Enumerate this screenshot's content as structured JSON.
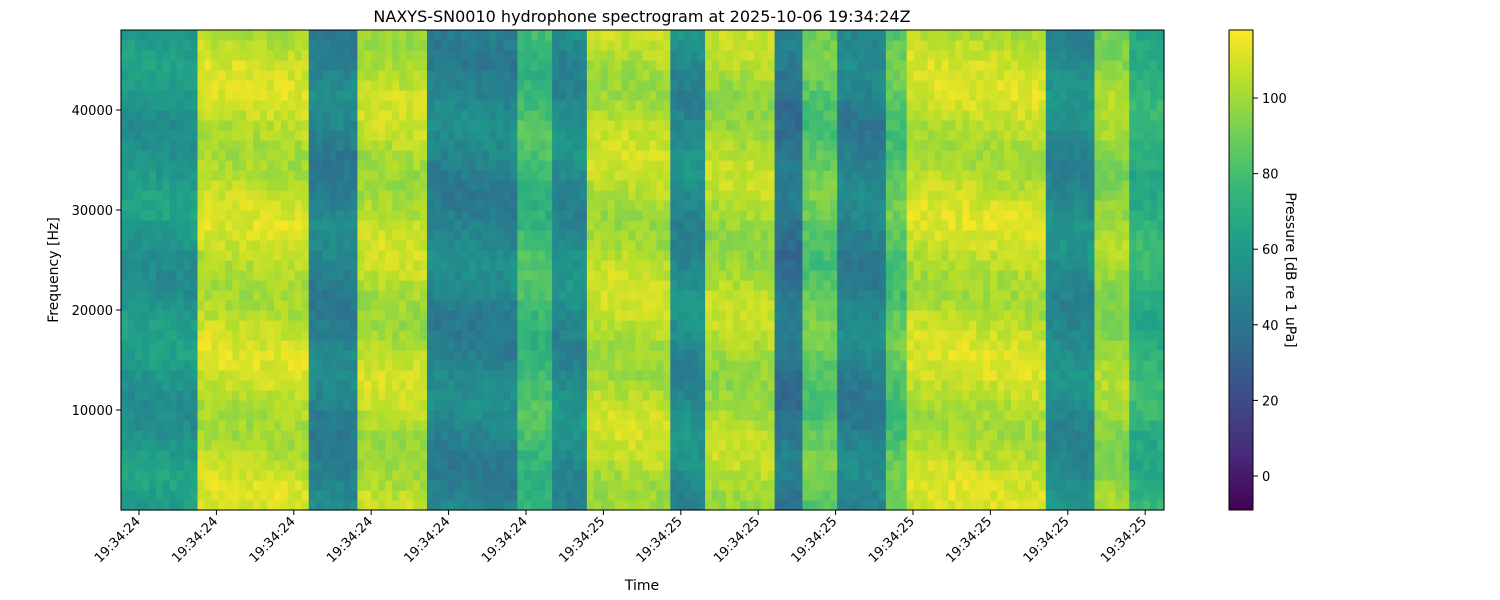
{
  "chart_data": {
    "type": "heatmap",
    "title": "NAXYS-SN0010 hydrophone spectrogram at 2025-10-06 19:34:24Z",
    "xlabel": "Time",
    "ylabel": "Frequency [Hz]",
    "colorbar_label": "Pressure [dB re 1 uPa]",
    "colormap": "viridis",
    "colormap_stops": [
      "#440154",
      "#482878",
      "#3e4a89",
      "#31688e",
      "#26828e",
      "#1f9e89",
      "#35b779",
      "#6ece58",
      "#b5de2b",
      "#fde725"
    ],
    "x_tick_labels": [
      "19:34:24",
      "19:34:24",
      "19:34:24",
      "19:34:24",
      "19:34:24",
      "19:34:24",
      "19:34:25",
      "19:34:25",
      "19:34:25",
      "19:34:25",
      "19:34:25",
      "19:34:25",
      "19:34:25",
      "19:34:25"
    ],
    "y_ticks": [
      10000,
      20000,
      30000,
      40000
    ],
    "ylim": [
      0,
      48000
    ],
    "colorbar_ticks": [
      0,
      20,
      40,
      60,
      80,
      100
    ],
    "colorbar_range": [
      -9,
      118
    ],
    "grid": false,
    "time_segments_db": [
      {
        "t0": 0.0,
        "t1": 0.075,
        "level": 58
      },
      {
        "t0": 0.075,
        "t1": 0.18,
        "level": 106
      },
      {
        "t0": 0.18,
        "t1": 0.23,
        "level": 47
      },
      {
        "t0": 0.23,
        "t1": 0.295,
        "level": 104
      },
      {
        "t0": 0.295,
        "t1": 0.38,
        "level": 48
      },
      {
        "t0": 0.38,
        "t1": 0.415,
        "level": 78
      },
      {
        "t0": 0.415,
        "t1": 0.45,
        "level": 52
      },
      {
        "t0": 0.45,
        "t1": 0.525,
        "level": 104
      },
      {
        "t0": 0.525,
        "t1": 0.56,
        "level": 52
      },
      {
        "t0": 0.56,
        "t1": 0.625,
        "level": 102
      },
      {
        "t0": 0.625,
        "t1": 0.655,
        "level": 40
      },
      {
        "t0": 0.655,
        "t1": 0.69,
        "level": 86
      },
      {
        "t0": 0.69,
        "t1": 0.735,
        "level": 47
      },
      {
        "t0": 0.735,
        "t1": 0.755,
        "level": 84
      },
      {
        "t0": 0.755,
        "t1": 0.885,
        "level": 106
      },
      {
        "t0": 0.885,
        "t1": 0.935,
        "level": 52
      },
      {
        "t0": 0.935,
        "t1": 0.965,
        "level": 98
      },
      {
        "t0": 0.965,
        "t1": 1.0,
        "level": 72
      }
    ]
  }
}
